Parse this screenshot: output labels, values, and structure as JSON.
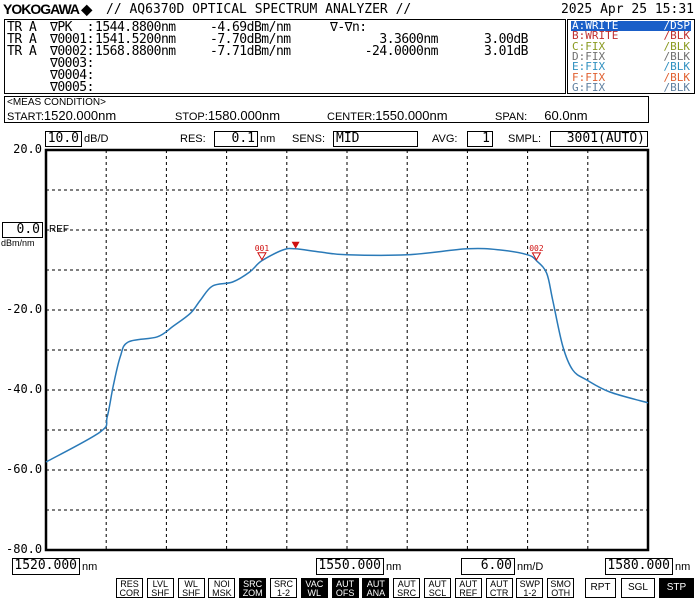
{
  "header": {
    "brand": "YOKOGAWA",
    "title": "// AQ6370D OPTICAL SPECTRUM ANALYZER //",
    "datetime": "2025 Apr 25 15:31"
  },
  "markers": {
    "rows": [
      {
        "trace": "TR A",
        "name": "∇PK  :",
        "wl": "1544.8800nm",
        "level": "-4.69dBm/nm",
        "dwl": "",
        "dlvl": ""
      },
      {
        "trace": "TR A",
        "name": "∇0001:",
        "wl": "1541.5200nm",
        "level": "-7.70dBm/nm",
        "dwl": "3.3600nm",
        "dlvl": "3.00dB"
      },
      {
        "trace": "TR A",
        "name": "∇0002:",
        "wl": "1568.8800nm",
        "level": "-7.71dBm/nm",
        "dwl": "-24.0000nm",
        "dlvl": "3.01dB"
      },
      {
        "trace": "",
        "name": "∇0003:",
        "wl": "",
        "level": "",
        "dwl": "",
        "dlvl": ""
      },
      {
        "trace": "",
        "name": "∇0004:",
        "wl": "",
        "level": "",
        "dwl": "",
        "dlvl": ""
      },
      {
        "trace": "",
        "name": "∇0005:",
        "wl": "",
        "level": "",
        "dwl": "",
        "dlvl": ""
      }
    ],
    "delta_header": "∇-∇n:"
  },
  "traces": [
    {
      "mode": "A:WRITE",
      "disp": "/DSP",
      "color": "#ffffff",
      "bg": "#1a5fc8"
    },
    {
      "mode": "B:WRITE",
      "disp": "/BLK",
      "color": "#c03030"
    },
    {
      "mode": "C:FIX",
      "disp": "/BLK",
      "color": "#8a9a20"
    },
    {
      "mode": "D:FIX",
      "disp": "/BLK",
      "color": "#707070"
    },
    {
      "mode": "E:FIX",
      "disp": "/BLK",
      "color": "#3090c0"
    },
    {
      "mode": "F:FIX",
      "disp": "/BLK",
      "color": "#e06030"
    },
    {
      "mode": "G:FIX",
      "disp": "/BLK",
      "color": "#6080a0"
    }
  ],
  "meas": {
    "title": "<MEAS CONDITION>",
    "start_label": "START:",
    "start": "1520.000nm",
    "stop_label": "STOP:",
    "stop": "1580.000nm",
    "center_label": "CENTER:",
    "center": "1550.000nm",
    "span_label": "SPAN:",
    "span": "60.0nm"
  },
  "settings": {
    "scale": "10.0",
    "scale_unit": "dB/D",
    "res_label": "RES:",
    "res": "0.1",
    "res_unit": "nm",
    "sens_label": "SENS:",
    "sens": "MID",
    "avg_label": "AVG:",
    "avg": "1",
    "smpl_label": "SMPL:",
    "smpl": "3001(AUTO)"
  },
  "ref": {
    "value": "0.0",
    "label": "REF",
    "unit": "dBm/nm"
  },
  "bottom": {
    "start": "1520.000",
    "center": "1550.000",
    "span_div": "6.00",
    "stop": "1580.000",
    "unit": "nm",
    "div_unit": "nm/D"
  },
  "buttons": [
    {
      "l1": "RES",
      "l2": "COR",
      "on": false
    },
    {
      "l1": "LVL",
      "l2": "SHF",
      "on": false
    },
    {
      "l1": "WL",
      "l2": "SHF",
      "on": false
    },
    {
      "l1": "NOI",
      "l2": "MSK",
      "on": false
    },
    {
      "l1": "SRC",
      "l2": "ZOM",
      "on": true
    },
    {
      "l1": "SRC",
      "l2": "1-2",
      "on": false
    },
    {
      "l1": "VAC",
      "l2": "WL",
      "on": true
    },
    {
      "l1": "AUT",
      "l2": "OFS",
      "on": true
    },
    {
      "l1": "AUT",
      "l2": "ANA",
      "on": true
    },
    {
      "l1": "AUT",
      "l2": "SRC",
      "on": false
    },
    {
      "l1": "AUT",
      "l2": "SCL",
      "on": false
    },
    {
      "l1": "AUT",
      "l2": "REF",
      "on": false
    },
    {
      "l1": "AUT",
      "l2": "CTR",
      "on": false
    },
    {
      "l1": "SWP",
      "l2": "1-2",
      "on": false
    },
    {
      "l1": "SMO",
      "l2": "OTH",
      "on": false
    }
  ],
  "sweep_buttons": [
    {
      "label": "RPT",
      "on": false
    },
    {
      "label": "SGL",
      "on": false
    },
    {
      "label": "STP",
      "on": true
    }
  ],
  "chart_data": {
    "type": "line",
    "xlim": [
      1520,
      1580
    ],
    "ylim": [
      -80,
      20
    ],
    "yticks": [
      "20.0",
      "0.0",
      "-20.0",
      "-40.0",
      "-60.0",
      "-80.0"
    ],
    "ytick_values": [
      20,
      0,
      -20,
      -40,
      -60,
      -80
    ],
    "grid": true,
    "trace_color": "#2a7ab8",
    "marker_color": "#d01010",
    "x": [
      1520,
      1525.4,
      1526.1,
      1526.7,
      1527.4,
      1528.2,
      1531.1,
      1532.7,
      1534.4,
      1535.4,
      1536.6,
      1538.6,
      1540.3,
      1541.5,
      1543.6,
      1544.8,
      1547.3,
      1550.0,
      1556.0,
      1562.0,
      1565.3,
      1568.0,
      1568.9,
      1569.9,
      1570.5,
      1571.5,
      1572.5,
      1573.9,
      1576.2,
      1580
    ],
    "y": [
      -58,
      -50.5,
      -46.7,
      -39,
      -31.7,
      -28,
      -26.7,
      -24,
      -20.8,
      -17.5,
      -14,
      -13,
      -10.5,
      -7.7,
      -5,
      -4.7,
      -5.5,
      -6.2,
      -6.2,
      -4.7,
      -5,
      -6.2,
      -7.7,
      -10.8,
      -17.5,
      -29,
      -35,
      -37.5,
      -40.5,
      -43.2
    ],
    "markers": [
      {
        "label": "001",
        "x": 1541.52,
        "y": -7.7
      },
      {
        "label": "002",
        "x": 1568.88,
        "y": -7.71
      }
    ],
    "peak": {
      "x": 1544.88,
      "y": -4.69
    }
  }
}
